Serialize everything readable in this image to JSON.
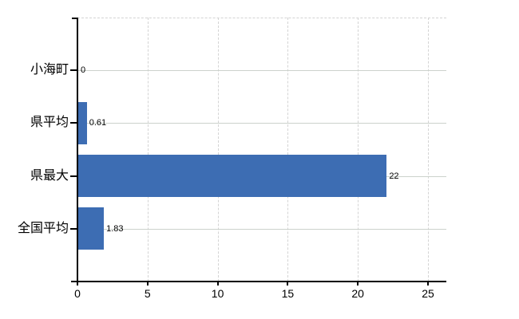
{
  "chart_data": {
    "type": "bar",
    "orientation": "horizontal",
    "title": "",
    "categories": [
      "小海町",
      "県平均",
      "県最大",
      "全国平均"
    ],
    "values": [
      0,
      0.61,
      22,
      1.83
    ],
    "value_labels": [
      "0",
      "0.61",
      "22",
      "1.83"
    ],
    "x_tick_labels": [
      "0",
      "5",
      "10",
      "15",
      "20",
      "25"
    ],
    "x_tick_values": [
      0,
      5,
      10,
      15,
      20,
      25
    ],
    "xlim": [
      0,
      26.3
    ],
    "grid": "on",
    "legend": "none",
    "bar_color": "#3d6db3",
    "axis_color": "#000000",
    "gridline_color": "#d2d6d2",
    "text_color": "#000000",
    "background_color": "#ffffff"
  }
}
